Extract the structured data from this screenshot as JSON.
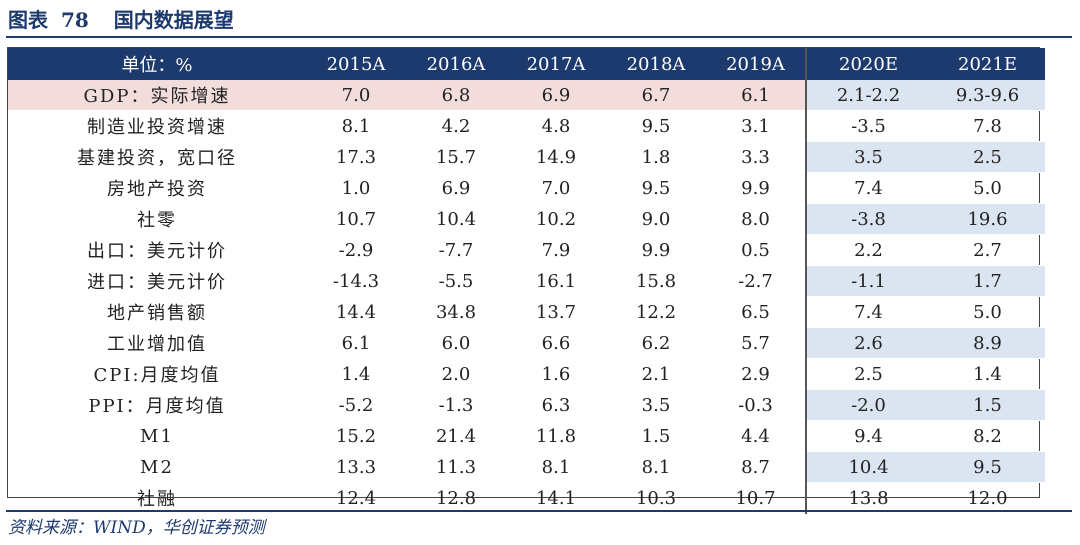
{
  "title": {
    "prefix": "图表",
    "number": "78",
    "text": "国内数据展望"
  },
  "table": {
    "header": [
      "单位：%",
      "2015A",
      "2016A",
      "2017A",
      "2018A",
      "2019A",
      "2020E",
      "2021E"
    ],
    "rows": [
      [
        "GDP：实际增速",
        "7.0",
        "6.8",
        "6.9",
        "6.7",
        "6.1",
        "2.1-2.2",
        "9.3-9.6"
      ],
      [
        "制造业投资增速",
        "8.1",
        "4.2",
        "4.8",
        "9.5",
        "3.1",
        "-3.5",
        "7.8"
      ],
      [
        "基建投资，宽口径",
        "17.3",
        "15.7",
        "14.9",
        "1.8",
        "3.3",
        "3.5",
        "2.5"
      ],
      [
        "房地产投资",
        "1.0",
        "6.9",
        "7.0",
        "9.5",
        "9.9",
        "7.4",
        "5.0"
      ],
      [
        "社零",
        "10.7",
        "10.4",
        "10.2",
        "9.0",
        "8.0",
        "-3.8",
        "19.6"
      ],
      [
        "出口：美元计价",
        "-2.9",
        "-7.7",
        "7.9",
        "9.9",
        "0.5",
        "2.2",
        "2.7"
      ],
      [
        "进口：美元计价",
        "-14.3",
        "-5.5",
        "16.1",
        "15.8",
        "-2.7",
        "-1.1",
        "1.7"
      ],
      [
        "地产销售额",
        "14.4",
        "34.8",
        "13.7",
        "12.2",
        "6.5",
        "7.4",
        "5.0"
      ],
      [
        "工业增加值",
        "6.1",
        "6.0",
        "6.6",
        "6.2",
        "5.7",
        "2.6",
        "8.9"
      ],
      [
        "CPI:月度均值",
        "1.4",
        "2.0",
        "1.6",
        "2.1",
        "2.9",
        "2.5",
        "1.4"
      ],
      [
        "PPI：月度均值",
        "-5.2",
        "-1.3",
        "6.3",
        "3.5",
        "-0.3",
        "-2.0",
        "1.5"
      ],
      [
        "M1",
        "15.2",
        "21.4",
        "11.8",
        "1.5",
        "4.4",
        "9.4",
        "8.2"
      ],
      [
        "M2",
        "13.3",
        "11.3",
        "8.1",
        "8.1",
        "8.7",
        "10.4",
        "9.5"
      ],
      [
        "社融",
        "12.4",
        "12.8",
        "14.1",
        "10.3",
        "10.7",
        "13.8",
        "12.0"
      ]
    ]
  },
  "source": "资料来源：WIND，华创证券预测",
  "colors": {
    "navy": "#1d3a6e",
    "highlight_actual": "#f2dcdc",
    "highlight_forecast": "#dbe5f1"
  }
}
